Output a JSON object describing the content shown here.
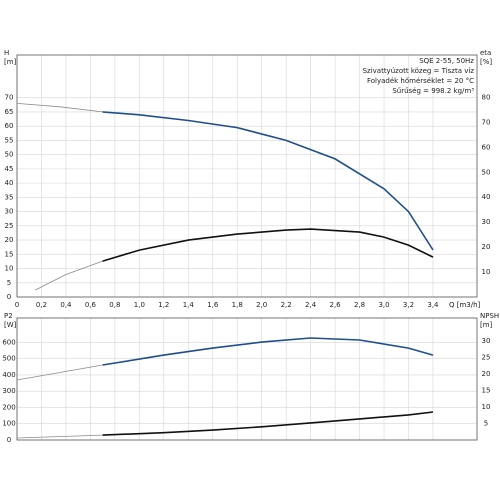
{
  "chart_data": [
    {
      "type": "line",
      "ylabel": "H",
      "yunit": "[m]",
      "y2label": "eta",
      "y2unit": "[%]",
      "xlabel": "Q [m3/h]",
      "annotations": [
        "SQE 2-55, 50Hz",
        "Szivattyúzott közeg = Tiszta víz",
        "Folyadék hőmérséklet = 20 °C",
        "Sűrűség = 998.2 kg/m³"
      ],
      "xlim": [
        0,
        3.76
      ],
      "xticks": [
        0,
        {
          "value": 0.2,
          "label": "0,2"
        },
        {
          "value": 0.4,
          "label": "0,4"
        },
        {
          "value": 0.6,
          "label": "0,6"
        },
        {
          "value": 0.8,
          "label": "0,8"
        },
        {
          "value": 1.0,
          "label": "1,0"
        },
        {
          "value": 1.2,
          "label": "1,2"
        },
        {
          "value": 1.4,
          "label": "1,4"
        },
        {
          "value": 1.6,
          "label": "1,6"
        },
        {
          "value": 1.8,
          "label": "1,8"
        },
        {
          "value": 2.0,
          "label": "2,0"
        },
        {
          "value": 2.2,
          "label": "2,2"
        },
        {
          "value": 2.4,
          "label": "2,4"
        },
        {
          "value": 2.6,
          "label": "2,6"
        },
        {
          "value": 2.8,
          "label": "2,8"
        },
        {
          "value": 3.0,
          "label": "3,0"
        },
        {
          "value": 3.2,
          "label": "3,2"
        },
        {
          "value": 3.4,
          "label": "3,4"
        }
      ],
      "ylim": [
        0,
        85
      ],
      "yticks": [
        0,
        5,
        10,
        15,
        20,
        25,
        30,
        35,
        40,
        45,
        50,
        55,
        60,
        65,
        70
      ],
      "y2lim": [
        0,
        97
      ],
      "y2ticks": [
        10,
        20,
        30,
        40,
        50,
        60,
        70,
        80
      ],
      "grid": true,
      "series": [
        {
          "color": "#8a8a8a",
          "x": [
            0,
            0.35,
            0.7
          ],
          "values": [
            68,
            66.8,
            65
          ]
        },
        {
          "color": "#1f4e8c",
          "x": [
            0.7,
            1.0,
            1.4,
            1.8,
            2.2,
            2.6,
            3.0,
            3.2,
            3.4
          ],
          "values": [
            65,
            64,
            62,
            59.5,
            55,
            48.5,
            38,
            30,
            16.5
          ]
        },
        {
          "color": "#8a8a8a",
          "axis": "y2",
          "x": [
            0.15,
            0.4,
            0.7
          ],
          "values": [
            2.8,
            9,
            14.4
          ]
        },
        {
          "color": "#111111",
          "axis": "y2",
          "x": [
            0.7,
            1.0,
            1.4,
            1.8,
            2.2,
            2.4,
            2.8,
            3.0,
            3.2,
            3.4
          ],
          "values": [
            14.4,
            18.8,
            22.8,
            25.2,
            26.8,
            27.2,
            26,
            24,
            20.8,
            16
          ]
        }
      ]
    },
    {
      "type": "line",
      "ylabel": "P2",
      "yunit": "[W]",
      "y2label": "NPSH",
      "y2unit": "[m]",
      "xlim": [
        0,
        3.76
      ],
      "ylim": [
        0,
        750
      ],
      "yticks": [
        0,
        100,
        200,
        300,
        400,
        500,
        600
      ],
      "y2lim": [
        0,
        37
      ],
      "y2ticks": [
        5,
        10,
        15,
        20,
        25,
        30
      ],
      "grid": true,
      "series": [
        {
          "color": "#8a8a8a",
          "x": [
            0,
            0.35,
            0.7
          ],
          "values": [
            369,
            415,
            461
          ]
        },
        {
          "color": "#1f4e8c",
          "x": [
            0.7,
            1.2,
            1.6,
            2.0,
            2.4,
            2.8,
            3.2,
            3.4
          ],
          "values": [
            461,
            522,
            565,
            602,
            627,
            615,
            565,
            522
          ]
        },
        {
          "color": "#8a8a8a",
          "axis": "y2",
          "x": [
            0,
            0.7
          ],
          "values": [
            0.6,
            1.5
          ]
        },
        {
          "color": "#111111",
          "axis": "y2",
          "x": [
            0.7,
            1.2,
            1.6,
            2.0,
            2.4,
            2.8,
            3.2,
            3.4
          ],
          "values": [
            1.5,
            2.2,
            3,
            4,
            5.2,
            6.4,
            7.6,
            8.5
          ]
        }
      ]
    }
  ]
}
